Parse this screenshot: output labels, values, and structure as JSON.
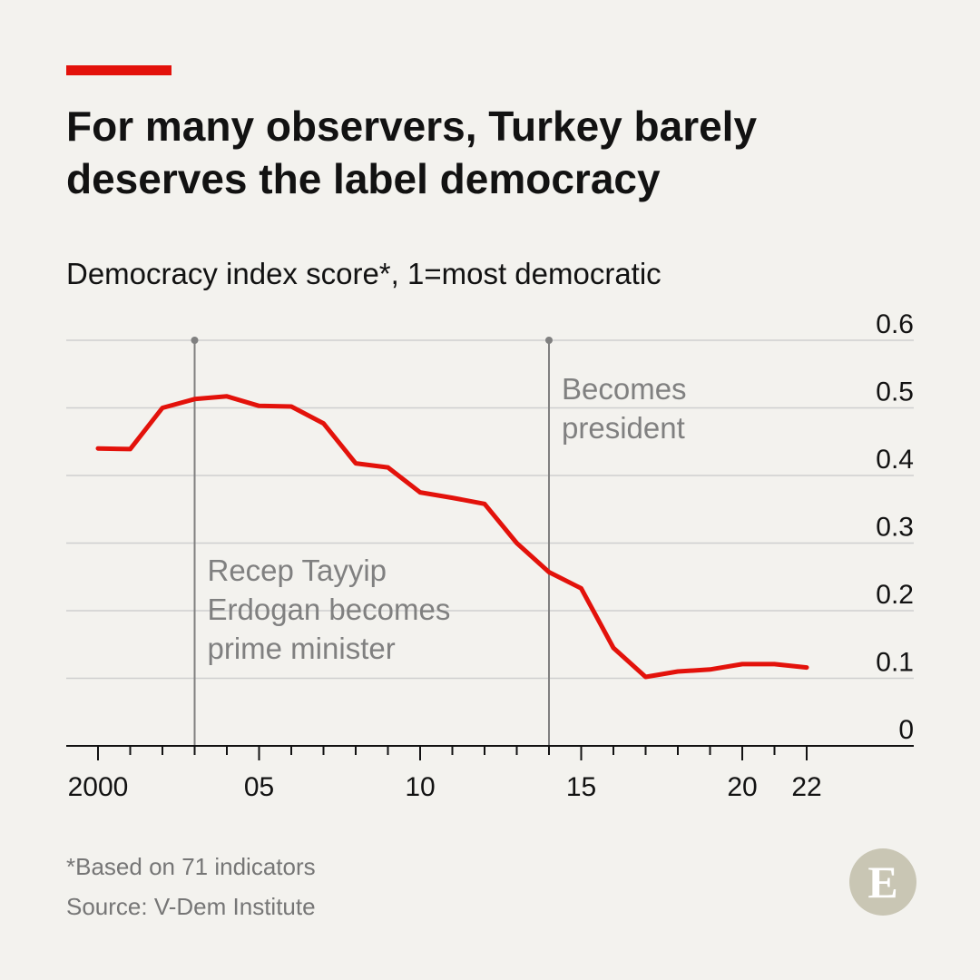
{
  "header": {
    "title_line1": "For many observers, Turkey barely",
    "title_line2": "deserves the label democracy",
    "subtitle": "Democracy index score*, 1=most democratic"
  },
  "footer": {
    "footnote": "*Based on 71 indicators",
    "source": "Source: V-Dem Institute",
    "logo_letter": "E"
  },
  "colors": {
    "line": "#e3120b",
    "annotation": "#808080",
    "grid": "#cfcfcf",
    "logo": "#c9c6b4"
  },
  "chart_data": {
    "type": "line",
    "x": [
      2000,
      2001,
      2002,
      2003,
      2004,
      2005,
      2006,
      2007,
      2008,
      2009,
      2010,
      2011,
      2012,
      2013,
      2014,
      2015,
      2016,
      2017,
      2018,
      2019,
      2020,
      2021,
      2022
    ],
    "series": [
      {
        "values": [
          0.44,
          0.439,
          0.5,
          0.513,
          0.517,
          0.503,
          0.502,
          0.477,
          0.418,
          0.412,
          0.375,
          0.367,
          0.358,
          0.3,
          0.257,
          0.233,
          0.145,
          0.102,
          0.11,
          0.113,
          0.121,
          0.121,
          0.116
        ]
      }
    ],
    "xlim": [
      1999,
      2026
    ],
    "ylim": [
      0,
      0.6
    ],
    "x_ticks": [
      2000,
      2001,
      2002,
      2003,
      2004,
      2005,
      2006,
      2007,
      2008,
      2009,
      2010,
      2011,
      2012,
      2013,
      2014,
      2015,
      2016,
      2017,
      2018,
      2019,
      2020,
      2021,
      2022
    ],
    "x_tick_labels": [
      {
        "x": 2000,
        "label": "2000"
      },
      {
        "x": 2005,
        "label": "05"
      },
      {
        "x": 2010,
        "label": "10"
      },
      {
        "x": 2015,
        "label": "15"
      },
      {
        "x": 2020,
        "label": "20"
      },
      {
        "x": 2022,
        "label": "22"
      }
    ],
    "y_ticks": [
      0,
      0.1,
      0.2,
      0.3,
      0.4,
      0.5,
      0.6
    ],
    "y_tick_labels": [
      "0",
      "0.1",
      "0.2",
      "0.3",
      "0.4",
      "0.5",
      "0.6"
    ],
    "grid": true,
    "y_axis_side": "right",
    "events": [
      {
        "x": 2003,
        "lines": [
          "Recep Tayyip",
          "Erdogan becomes",
          "prime minister"
        ]
      },
      {
        "x": 2014,
        "lines": [
          "Becomes",
          "president"
        ]
      }
    ]
  }
}
